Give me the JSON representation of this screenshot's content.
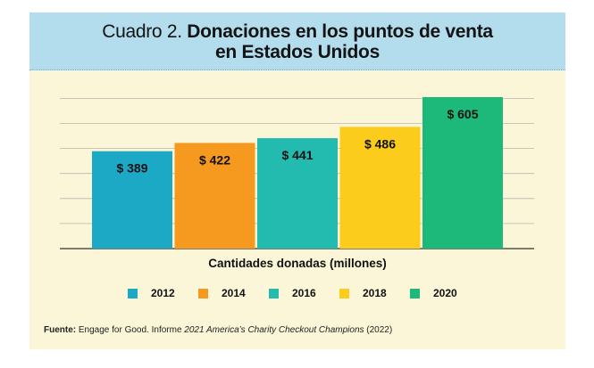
{
  "chart_data": {
    "type": "bar",
    "title_prefix": "Cuadro 2.",
    "title_main_line1": "Donaciones en los puntos de venta",
    "title_main_line2": "en Estados Unidos",
    "categories": [
      "2012",
      "2014",
      "2016",
      "2018",
      "2020"
    ],
    "values": [
      389,
      422,
      441,
      486,
      605
    ],
    "value_labels": [
      "$ 389",
      "$ 422",
      "$ 441",
      "$ 486",
      "$ 605"
    ],
    "colors": [
      "#1ba9c6",
      "#f59a1e",
      "#23bbb0",
      "#fbcc1c",
      "#1cb97a"
    ],
    "xlabel": "Cantidades donadas (millones)",
    "ylabel": "",
    "ylim": [
      0,
      650
    ],
    "grid": true,
    "legend_position": "bottom",
    "legend": [
      "2012",
      "2014",
      "2016",
      "2018",
      "2020"
    ]
  },
  "source": {
    "label": "Fuente:",
    "text_before": " Engage for Good. Informe ",
    "report_title": "2021 America’s Charity Checkout Champions",
    "text_after": " (2022)"
  }
}
